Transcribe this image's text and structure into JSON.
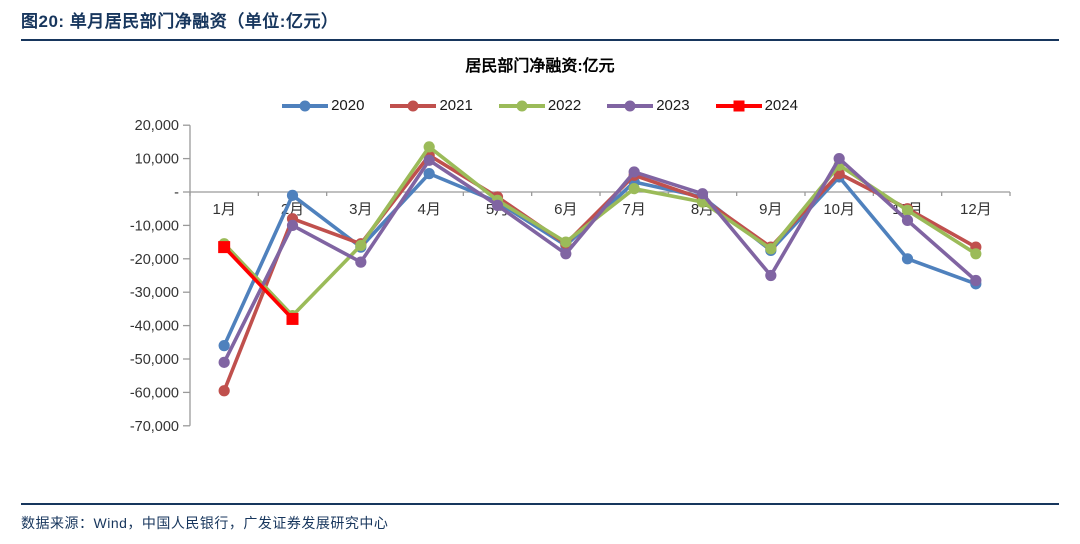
{
  "header": {
    "title": "图20:  单月居民部门净融资（单位:亿元）"
  },
  "footer": {
    "source": "数据来源：Wind，中国人民银行，广发证券发展研究中心"
  },
  "chart_data": {
    "type": "line",
    "title": "居民部门净融资:亿元",
    "categories": [
      "1月",
      "2月",
      "3月",
      "4月",
      "5月",
      "6月",
      "7月",
      "8月",
      "9月",
      "10月",
      "11月",
      "12月"
    ],
    "series": [
      {
        "name": "2020",
        "color": "#4F81BD",
        "marker": "circle",
        "values": [
          -46000,
          -1000,
          -16500,
          5500,
          -3000,
          -16000,
          3000,
          -1500,
          -17500,
          4500,
          -20000,
          -27500
        ]
      },
      {
        "name": "2021",
        "color": "#C0504D",
        "marker": "circle",
        "values": [
          -59500,
          -8000,
          -15500,
          11000,
          -1500,
          -15500,
          5000,
          -2000,
          -16500,
          5500,
          -5000,
          -16500
        ]
      },
      {
        "name": "2022",
        "color": "#9BBB59",
        "marker": "circle",
        "values": [
          -15500,
          -37000,
          -16000,
          13500,
          -2500,
          -15000,
          1000,
          -3000,
          -17000,
          8000,
          -5500,
          -18500
        ]
      },
      {
        "name": "2023",
        "color": "#8064A2",
        "marker": "circle",
        "values": [
          -51000,
          -10000,
          -21000,
          9500,
          -4000,
          -18500,
          6000,
          -500,
          -25000,
          10000,
          -8500,
          -26500
        ]
      },
      {
        "name": "2024",
        "color": "#FF0000",
        "marker": "square",
        "values": [
          -16500,
          -38000,
          null,
          null,
          null,
          null,
          null,
          null,
          null,
          null,
          null,
          null
        ]
      }
    ],
    "ylim": [
      -70000,
      20000
    ],
    "ytick_step": 10000,
    "ytick_labels": [
      "20,000",
      "10,000",
      "-",
      "-10,000",
      "-20,000",
      "-30,000",
      "-40,000",
      "-50,000",
      "-60,000",
      "-70,000"
    ],
    "legend_position": "top",
    "grid": false,
    "axis_color": "#9a9a9a",
    "tick_text_color": "#333333"
  }
}
